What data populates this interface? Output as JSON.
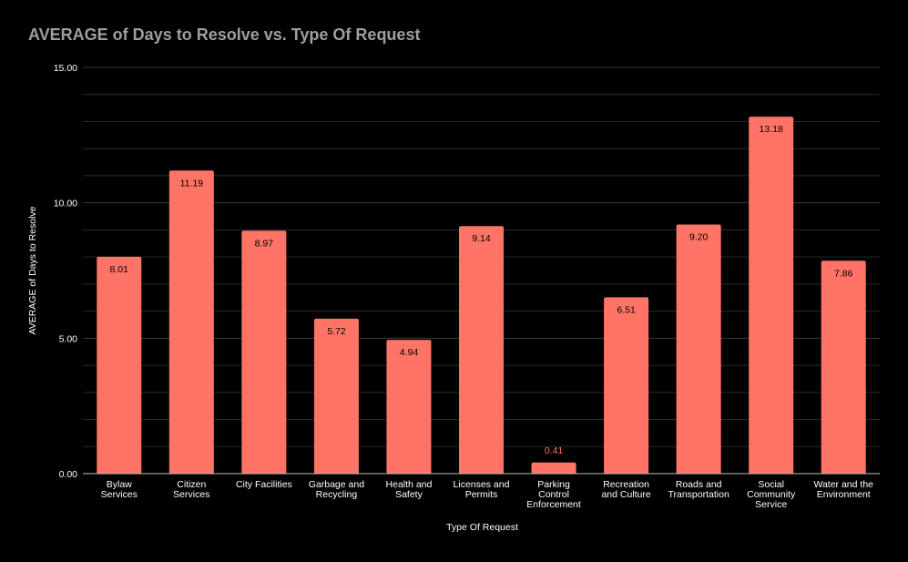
{
  "chart_data": {
    "type": "bar",
    "title": "AVERAGE of Days to Resolve vs. Type Of Request",
    "xlabel": "Type Of Request",
    "ylabel": "AVERAGE of Days to Resolve",
    "ylim": [
      0,
      15
    ],
    "yticks": [
      "0.00",
      "5.00",
      "10.00",
      "15.00"
    ],
    "categories": [
      [
        "Bylaw",
        "Services"
      ],
      [
        "Citizen",
        "Services"
      ],
      [
        "City Facilities"
      ],
      [
        "Garbage and",
        "Recycling"
      ],
      [
        "Health and",
        "Safety"
      ],
      [
        "Licenses and",
        "Permits"
      ],
      [
        "Parking",
        "Control",
        "Enforcement"
      ],
      [
        "Recreation",
        "and Culture"
      ],
      [
        "Roads and",
        "Transportation"
      ],
      [
        "Social",
        "Community",
        "Service"
      ],
      [
        "Water and the",
        "Environment"
      ]
    ],
    "values": [
      8.01,
      11.19,
      8.97,
      5.72,
      4.94,
      9.14,
      0.41,
      6.51,
      9.2,
      13.18,
      7.86
    ],
    "data_labels": [
      "8.01",
      "11.19",
      "8.97",
      "5.72",
      "4.94",
      "9.14",
      "0.41",
      "6.51",
      "9.20",
      "13.18",
      "7.86"
    ],
    "grid": true,
    "legend": "none",
    "colors": {
      "bar": "#ff7466",
      "background": "#000000",
      "title": "#9e9e9e",
      "text": "#ffffff",
      "gridline": "#2a2a2a",
      "axis": "#bdbdbd",
      "outside_label": "#ff7466",
      "inside_label": "#000000"
    }
  }
}
